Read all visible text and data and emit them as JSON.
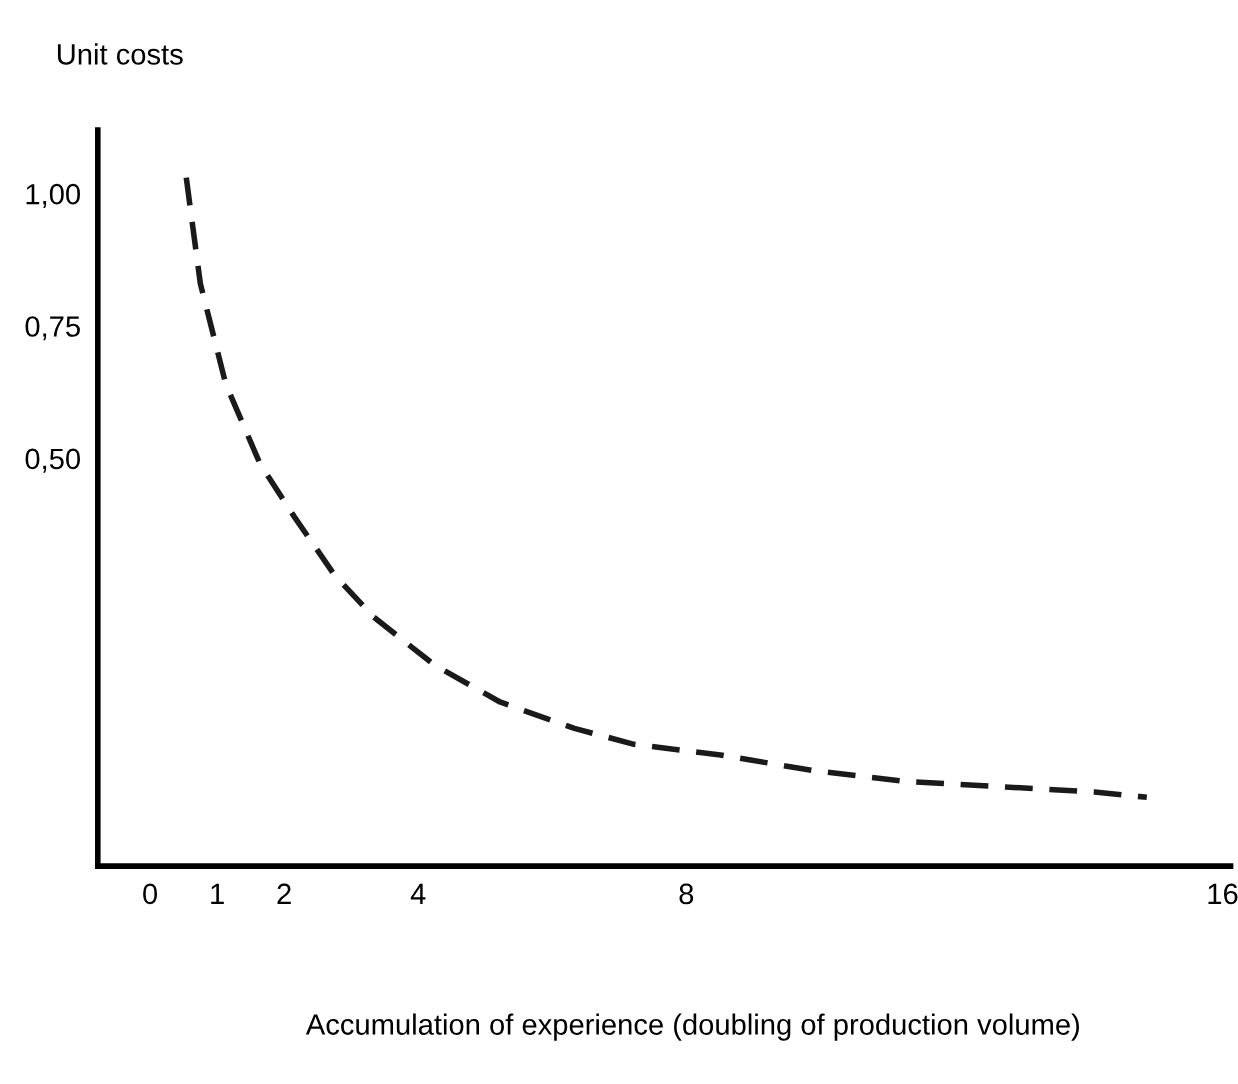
{
  "chart_data": {
    "type": "line",
    "ylabel": "Unit costs",
    "xlabel": "Accumulation of experience (doubling of production volume)",
    "series": [
      {
        "color": "#1a1a1a",
        "line_style": "dashed",
        "marker": "none",
        "x": [
          0.54,
          0.75,
          1.13,
          1.64,
          2.15,
          2.75,
          3.34,
          4.24,
          5.22,
          6.33,
          7.22,
          8.51,
          9.91,
          11.28,
          12.69,
          14.09,
          14.87
        ],
        "values": [
          1.03,
          0.83,
          0.64,
          0.49,
          0.39,
          0.28,
          0.2,
          0.11,
          0.04,
          -0.01,
          -0.04,
          -0.06,
          -0.09,
          -0.11,
          -0.12,
          -0.13,
          -0.14
        ]
      }
    ],
    "xlim": [
      -0.78,
      16.12
    ],
    "ylim": [
      -0.27,
      1.12
    ],
    "xticks": [
      0,
      1,
      2,
      4,
      8,
      16
    ],
    "yticks": [
      {
        "value": 1.0,
        "label": "1,00"
      },
      {
        "value": 0.75,
        "label": "0,75"
      },
      {
        "value": 0.5,
        "label": "0,50"
      }
    ],
    "grid": false,
    "legend": false
  }
}
